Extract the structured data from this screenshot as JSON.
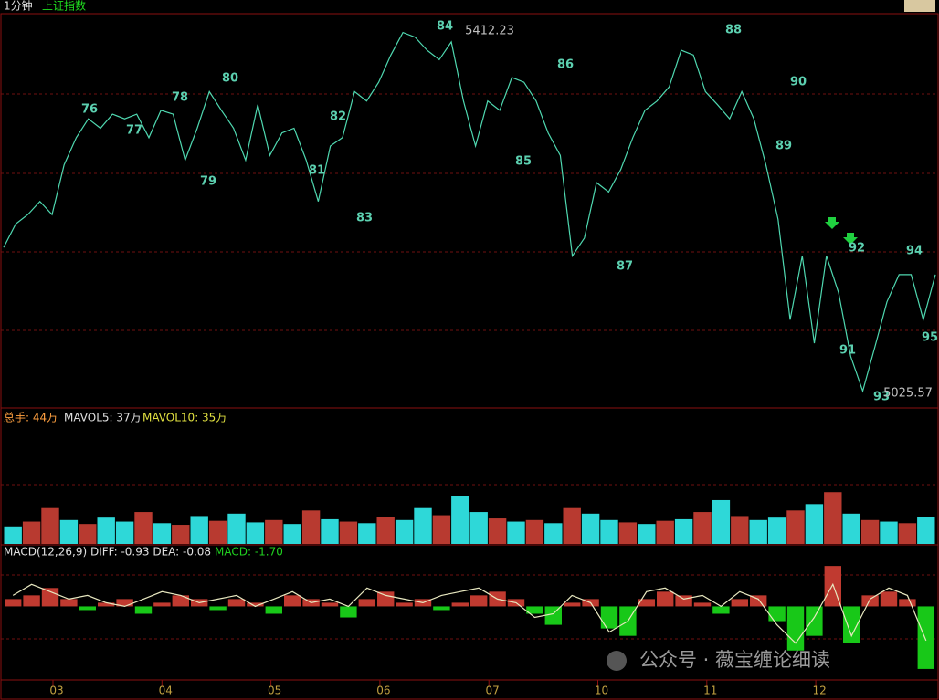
{
  "header": {
    "period": "1分钟",
    "name": "上证指数"
  },
  "chart_data": [
    {
      "type": "line",
      "color": "#4fd8b0",
      "values": [
        5181,
        5206,
        5216,
        5230,
        5216,
        5269,
        5298,
        5318,
        5308,
        5323,
        5318,
        5323,
        5298,
        5327,
        5323,
        5274,
        5308,
        5347,
        5327,
        5308,
        5274,
        5333,
        5279,
        5303,
        5308,
        5274,
        5230,
        5289,
        5298,
        5347,
        5337,
        5357,
        5386,
        5410,
        5405,
        5391,
        5381,
        5400,
        5337,
        5289,
        5337,
        5327,
        5362,
        5357,
        5337,
        5303,
        5279,
        5172,
        5191,
        5250,
        5240,
        5264,
        5298,
        5327,
        5337,
        5352,
        5391,
        5386,
        5347,
        5333,
        5318,
        5347,
        5318,
        5269,
        5211,
        5104,
        5172,
        5079,
        5172,
        5133,
        5065,
        5028,
        5075,
        5123,
        5152,
        5152,
        5104,
        5152
      ],
      "ylim": [
        5010,
        5430
      ],
      "annotations": [
        "76",
        "77",
        "78",
        "79",
        "80",
        "81",
        "82",
        "83",
        "84",
        "85",
        "86",
        "87",
        "88",
        "89",
        "90",
        "91",
        "92",
        "93",
        "94",
        "95",
        "5412.23",
        "5025.57"
      ],
      "x_labels": [
        "03",
        "04",
        "05",
        "06",
        "07",
        "10",
        "11",
        "12"
      ]
    },
    {
      "type": "bar",
      "title_parts": [
        "总手: 44万",
        "MAVOL5: 37万",
        "MAVOL10: 35万"
      ],
      "values": [
        22,
        28,
        45,
        30,
        25,
        33,
        28,
        40,
        26,
        24,
        35,
        29,
        38,
        27,
        30,
        25,
        42,
        31,
        28,
        26,
        34,
        30,
        45,
        36,
        60,
        40,
        32,
        28,
        30,
        26,
        45,
        38,
        30,
        27,
        25,
        29,
        31,
        40,
        55,
        35,
        30,
        33,
        42,
        50,
        65,
        38,
        30,
        28,
        26,
        34
      ],
      "colors": [
        "#2ed8d8",
        "#b83a30",
        "#b83a30",
        "#2ed8d8",
        "#b83a30",
        "#2ed8d8",
        "#2ed8d8",
        "#b83a30",
        "#2ed8d8",
        "#b83a30",
        "#2ed8d8",
        "#b83a30",
        "#2ed8d8",
        "#2ed8d8",
        "#b83a30",
        "#2ed8d8",
        "#b83a30",
        "#2ed8d8",
        "#b83a30",
        "#2ed8d8",
        "#b83a30",
        "#2ed8d8",
        "#2ed8d8",
        "#b83a30",
        "#2ed8d8",
        "#2ed8d8",
        "#b83a30",
        "#2ed8d8",
        "#b83a30",
        "#2ed8d8",
        "#b83a30",
        "#2ed8d8",
        "#2ed8d8",
        "#b83a30",
        "#2ed8d8",
        "#b83a30",
        "#2ed8d8",
        "#b83a30",
        "#2ed8d8",
        "#b83a30",
        "#2ed8d8",
        "#2ed8d8",
        "#b83a30",
        "#2ed8d8",
        "#b83a30",
        "#2ed8d8",
        "#b83a30",
        "#2ed8d8",
        "#b83a30",
        "#2ed8d8"
      ],
      "ylim": [
        0,
        150
      ]
    },
    {
      "type": "macd",
      "title_parts": [
        "MACD(12,26,9) DIFF: -0.93 DEA: -0.08",
        "MACD: -1.70"
      ],
      "values": [
        0.2,
        0.3,
        0.5,
        0.2,
        -0.1,
        0.1,
        0.2,
        -0.2,
        0.1,
        0.3,
        0.2,
        -0.1,
        0.2,
        0.1,
        -0.2,
        0.3,
        0.2,
        0.1,
        -0.3,
        0.2,
        0.4,
        0.1,
        0.2,
        -0.1,
        0.1,
        0.3,
        0.4,
        0.2,
        -0.2,
        -0.5,
        0.1,
        0.2,
        -0.6,
        -0.8,
        0.2,
        0.4,
        0.3,
        0.1,
        -0.2,
        0.2,
        0.3,
        -0.4,
        -1.2,
        -0.8,
        1.1,
        -1.0,
        0.3,
        0.4,
        0.2,
        -1.7
      ],
      "diff": [
        0.3,
        0.6,
        0.4,
        0.2,
        0.3,
        0.1,
        0.0,
        0.2,
        0.4,
        0.3,
        0.1,
        0.2,
        0.3,
        0.0,
        0.2,
        0.4,
        0.1,
        0.2,
        0.0,
        0.5,
        0.3,
        0.2,
        0.1,
        0.3,
        0.4,
        0.5,
        0.2,
        0.1,
        -0.3,
        -0.2,
        0.3,
        0.1,
        -0.7,
        -0.4,
        0.4,
        0.5,
        0.2,
        0.3,
        0.0,
        0.4,
        0.2,
        -0.5,
        -1.0,
        -0.3,
        0.6,
        -0.8,
        0.2,
        0.5,
        0.3,
        -0.93
      ],
      "up_color": "#c03a30",
      "down_color": "#18c818",
      "line_color": "#e8e8c0",
      "ylim": [
        -2,
        1.6
      ]
    }
  ],
  "watermark": "公众号 · 薇宝缠论细读"
}
